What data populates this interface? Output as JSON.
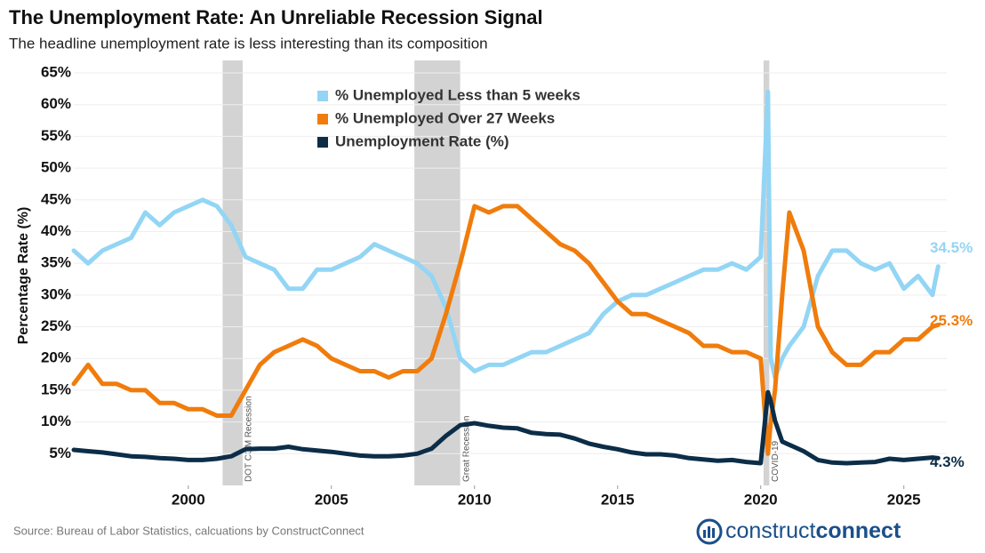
{
  "chart_data": {
    "type": "line",
    "title": "The Unemployment Rate: An Unreliable Recession Signal",
    "subtitle": "The headline unemployment rate is less interesting than its composition",
    "y_label": "Percentage Rate (%)",
    "source": "Source: Bureau of Labor Statistics, calcuations by ConstructConnect",
    "logo": [
      "construct",
      "connect"
    ],
    "xlim": [
      1996,
      2026.5
    ],
    "xticks": [
      2000,
      2005,
      2010,
      2015,
      2020,
      2025
    ],
    "ylim": [
      0,
      65
    ],
    "yticks": [
      {
        "value": 5,
        "label": "5%"
      },
      {
        "value": 10,
        "label": "10%"
      },
      {
        "value": 15,
        "label": "15%"
      },
      {
        "value": 20,
        "label": "20%"
      },
      {
        "value": 25,
        "label": "25%"
      },
      {
        "value": 30,
        "label": "30%"
      },
      {
        "value": 35,
        "label": "35%"
      },
      {
        "value": 40,
        "label": "40%"
      },
      {
        "value": 45,
        "label": "45%"
      },
      {
        "value": 50,
        "label": "50%"
      },
      {
        "value": 55,
        "label": "55%"
      },
      {
        "value": 60,
        "label": "60%"
      },
      {
        "value": 65,
        "label": "65%"
      }
    ],
    "grid": true,
    "recessions": [
      {
        "label": "DOT COM Recession",
        "start": 2001.2,
        "end": 2001.9
      },
      {
        "label": "Great Recession",
        "start": 2007.9,
        "end": 2009.5
      },
      {
        "label": "COVID-19",
        "start": 2020.1,
        "end": 2020.3
      }
    ],
    "x": [
      1996,
      1996.5,
      1997,
      1997.5,
      1998,
      1998.5,
      1999,
      1999.5,
      2000,
      2000.5,
      2001,
      2001.5,
      2002,
      2002.5,
      2003,
      2003.5,
      2004,
      2004.5,
      2005,
      2005.5,
      2006,
      2006.5,
      2007,
      2007.5,
      2008,
      2008.5,
      2009,
      2009.5,
      2010,
      2010.5,
      2011,
      2011.5,
      2012,
      2012.5,
      2013,
      2013.5,
      2014,
      2014.5,
      2015,
      2015.5,
      2016,
      2016.5,
      2017,
      2017.5,
      2018,
      2018.5,
      2019,
      2019.5,
      2020,
      2020.25,
      2020.35,
      2020.5,
      2020.75,
      2021,
      2021.5,
      2022,
      2022.5,
      2023,
      2023.5,
      2024,
      2024.5,
      2025,
      2025.5,
      2026,
      2026.2
    ],
    "series": [
      {
        "name": "% Unemployed Less than 5 weeks",
        "color": "#93d5f5",
        "values": [
          37,
          35,
          37,
          38,
          39,
          43,
          41,
          43,
          44,
          45,
          44,
          41,
          36,
          35,
          34,
          31,
          31,
          34,
          34,
          35,
          36,
          38,
          37,
          36,
          35,
          33,
          28,
          20,
          18,
          19,
          19,
          20,
          21,
          21,
          22,
          23,
          24,
          27,
          29,
          30,
          30,
          31,
          32,
          33,
          34,
          34,
          35,
          34,
          36,
          62,
          20,
          17,
          20,
          22,
          25,
          33,
          37,
          37,
          35,
          34,
          35,
          31,
          33,
          30,
          34.5
        ],
        "end_label": {
          "value": 34.5,
          "label": "34.5%"
        }
      },
      {
        "name": "% Unemployed Over 27 Weeks",
        "color": "#f07c0c",
        "values": [
          16,
          19,
          16,
          16,
          15,
          15,
          13,
          13,
          12,
          12,
          11,
          11,
          15,
          19,
          21,
          22,
          23,
          22,
          20,
          19,
          18,
          18,
          17,
          18,
          18,
          20,
          27,
          35,
          44,
          43,
          44,
          44,
          42,
          40,
          38,
          37,
          35,
          32,
          29,
          27,
          27,
          26,
          25,
          24,
          22,
          22,
          21,
          21,
          20,
          5,
          10,
          15,
          30,
          43,
          37,
          25,
          21,
          19,
          19,
          21,
          21,
          23,
          23,
          25,
          25.3
        ],
        "end_label": {
          "value": 25.3,
          "label": "25.3%"
        }
      },
      {
        "name": "Unemployment Rate (%)",
        "color": "#0c2d48",
        "values": [
          5.6,
          5.4,
          5.2,
          4.9,
          4.6,
          4.5,
          4.3,
          4.2,
          4.0,
          4.0,
          4.2,
          4.6,
          5.7,
          5.8,
          5.8,
          6.1,
          5.7,
          5.5,
          5.3,
          5.0,
          4.7,
          4.6,
          4.6,
          4.7,
          5.0,
          5.8,
          7.8,
          9.5,
          9.8,
          9.4,
          9.1,
          9.0,
          8.3,
          8.1,
          8.0,
          7.4,
          6.6,
          6.1,
          5.7,
          5.2,
          4.9,
          4.9,
          4.7,
          4.3,
          4.1,
          3.9,
          4.0,
          3.7,
          3.5,
          14.7,
          13.3,
          10.2,
          6.9,
          6.4,
          5.4,
          4.0,
          3.6,
          3.5,
          3.6,
          3.7,
          4.2,
          4.0,
          4.2,
          4.4,
          4.3
        ],
        "end_label": {
          "value": 4.3,
          "label": "4.3%"
        }
      }
    ]
  }
}
